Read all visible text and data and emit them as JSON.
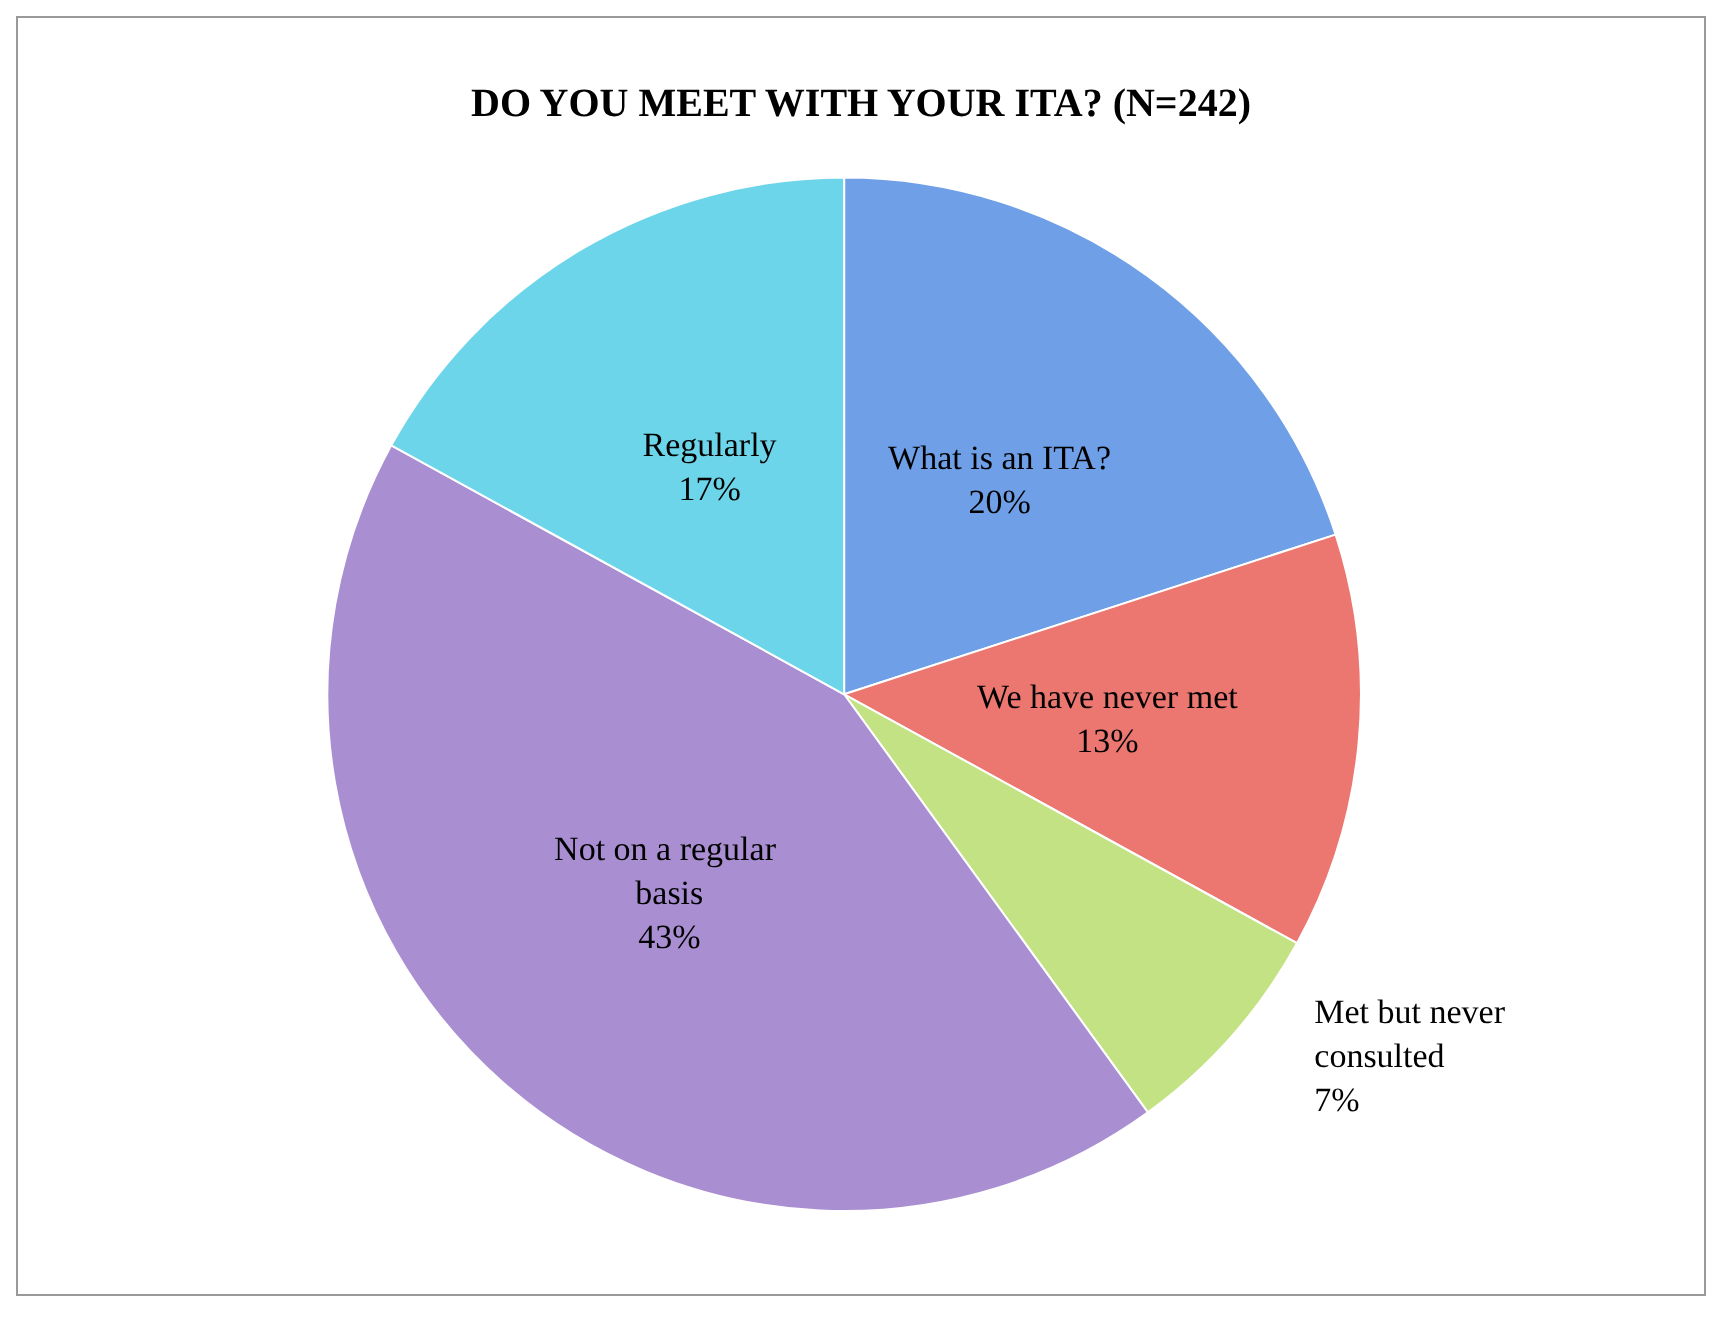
{
  "chart_data": {
    "type": "pie",
    "title": "DO YOU MEET WITH YOUR ITA? (N=242)",
    "categories": [
      "What is an ITA?",
      "We have never met",
      "Met but never consulted",
      "Not on a regular basis",
      "Regularly"
    ],
    "values": [
      20,
      13,
      7,
      43,
      17
    ],
    "colors": [
      "#6f9fe6",
      "#ec7670",
      "#c3e283",
      "#a98fd2",
      "#6dd5ea"
    ],
    "legend": false,
    "value_labels": [
      "20%",
      "13%",
      "7%",
      "43%",
      "17%"
    ]
  }
}
